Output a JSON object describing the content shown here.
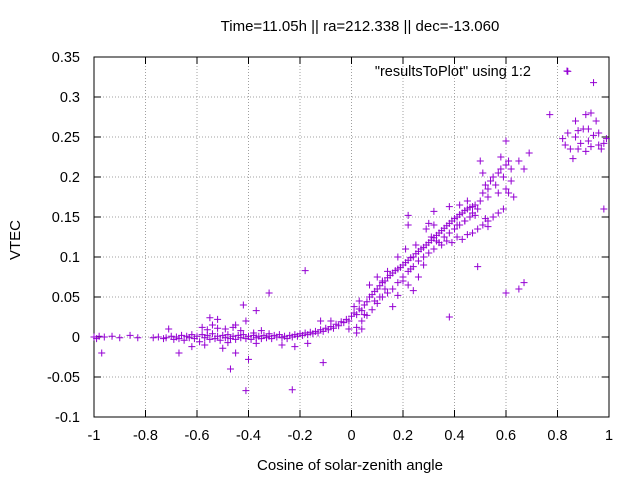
{
  "chart_data": {
    "type": "scatter",
    "title": "Time=11.05h || ra=212.338 || dec=-13.060",
    "xlabel": "Cosine of solar-zenith angle",
    "ylabel": "VTEC",
    "xlim": [
      -1,
      1
    ],
    "ylim": [
      -0.1,
      0.35
    ],
    "xticks": [
      "-1",
      "-0.8",
      "-0.6",
      "-0.4",
      "-0.2",
      "0",
      "0.2",
      "0.4",
      "0.6",
      "0.8",
      "1"
    ],
    "yticks": [
      "-0.1",
      "-0.05",
      "0",
      "0.05",
      "0.1",
      "0.15",
      "0.2",
      "0.25",
      "0.3",
      "0.35"
    ],
    "grid": true,
    "legend_position": "top-right",
    "marker": "+",
    "color": "#9400D3",
    "series": [
      {
        "name": "\"resultsToPlot\" using 1:2",
        "points": [
          [
            -1.0,
            0.0
          ],
          [
            -0.99,
            -0.002
          ],
          [
            -0.98,
            0.001
          ],
          [
            -0.97,
            -0.02
          ],
          [
            -0.96,
            0.0
          ],
          [
            -0.93,
            0.001
          ],
          [
            -0.9,
            -0.001
          ],
          [
            -0.86,
            0.002
          ],
          [
            -0.83,
            -0.001
          ],
          [
            -0.77,
            -0.001
          ],
          [
            -0.75,
            0.0
          ],
          [
            -0.73,
            -0.002
          ],
          [
            -0.72,
            -0.001
          ],
          [
            -0.7,
            0.001
          ],
          [
            -0.69,
            -0.003
          ],
          [
            -0.68,
            0.0
          ],
          [
            -0.67,
            -0.002
          ],
          [
            -0.66,
            0.002
          ],
          [
            -0.65,
            -0.004
          ],
          [
            -0.64,
            0.001
          ],
          [
            -0.63,
            -0.001
          ],
          [
            -0.62,
            0.003
          ],
          [
            -0.61,
            -0.002
          ],
          [
            -0.6,
            0.001
          ],
          [
            -0.59,
            -0.006
          ],
          [
            -0.58,
            0.003
          ],
          [
            -0.57,
            -0.001
          ],
          [
            -0.56,
            0.002
          ],
          [
            -0.55,
            -0.003
          ],
          [
            -0.54,
            0.004
          ],
          [
            -0.53,
            -0.002
          ],
          [
            -0.52,
            0.001
          ],
          [
            -0.51,
            -0.004
          ],
          [
            -0.5,
            0.002
          ],
          [
            -0.49,
            -0.001
          ],
          [
            -0.48,
            0.003
          ],
          [
            -0.47,
            -0.002
          ],
          [
            -0.46,
            0.001
          ],
          [
            -0.45,
            -0.003
          ],
          [
            -0.44,
            0.002
          ],
          [
            -0.43,
            -0.001
          ],
          [
            -0.42,
            0.003
          ],
          [
            -0.41,
            -0.002
          ],
          [
            -0.4,
            0.001
          ],
          [
            -0.39,
            -0.003
          ],
          [
            -0.38,
            0.002
          ],
          [
            -0.37,
            -0.001
          ],
          [
            -0.36,
            0.001
          ],
          [
            -0.35,
            -0.002
          ],
          [
            -0.34,
            0.002
          ],
          [
            -0.33,
            -0.001
          ],
          [
            -0.32,
            0.001
          ],
          [
            -0.31,
            -0.002
          ],
          [
            -0.3,
            0.002
          ],
          [
            -0.29,
            0.0
          ],
          [
            -0.28,
            0.003
          ],
          [
            -0.27,
            -0.001
          ],
          [
            -0.26,
            0.001
          ],
          [
            -0.25,
            -0.002
          ],
          [
            -0.24,
            0.002
          ],
          [
            -0.23,
            0.0
          ],
          [
            -0.22,
            0.003
          ],
          [
            -0.21,
            0.001
          ],
          [
            -0.2,
            0.004
          ],
          [
            -0.19,
            0.002
          ],
          [
            -0.18,
            0.005
          ],
          [
            -0.17,
            0.003
          ],
          [
            -0.16,
            0.006
          ],
          [
            -0.15,
            0.004
          ],
          [
            -0.14,
            0.007
          ],
          [
            -0.13,
            0.005
          ],
          [
            -0.12,
            0.009
          ],
          [
            -0.11,
            0.007
          ],
          [
            -0.1,
            0.011
          ],
          [
            -0.09,
            0.009
          ],
          [
            -0.08,
            0.013
          ],
          [
            -0.07,
            0.011
          ],
          [
            -0.06,
            0.016
          ],
          [
            -0.05,
            0.014
          ],
          [
            -0.04,
            0.019
          ],
          [
            -0.58,
            0.012
          ],
          [
            -0.56,
            0.009
          ],
          [
            -0.54,
            0.015
          ],
          [
            -0.52,
            0.011
          ],
          [
            -0.49,
            0.01
          ],
          [
            -0.46,
            0.012
          ],
          [
            -0.43,
            0.008
          ],
          [
            -0.41,
            0.02
          ],
          [
            -0.38,
            0.005
          ],
          [
            -0.35,
            0.008
          ],
          [
            -0.32,
            0.004
          ],
          [
            -0.55,
            0.024
          ],
          [
            -0.52,
            0.022
          ],
          [
            -0.45,
            0.015
          ],
          [
            -0.42,
            0.04
          ],
          [
            -0.37,
            0.033
          ],
          [
            -0.62,
            -0.012
          ],
          [
            -0.57,
            -0.01
          ],
          [
            -0.5,
            -0.014
          ],
          [
            -0.45,
            -0.02
          ],
          [
            -0.48,
            -0.007
          ],
          [
            -0.37,
            -0.008
          ],
          [
            -0.27,
            -0.01
          ],
          [
            -0.22,
            -0.012
          ],
          [
            -0.17,
            -0.008
          ],
          [
            -0.47,
            -0.04
          ],
          [
            -0.41,
            -0.067
          ],
          [
            -0.4,
            -0.028
          ],
          [
            -0.23,
            -0.066
          ],
          [
            -0.11,
            -0.032
          ],
          [
            -0.67,
            -0.02
          ],
          [
            -0.71,
            0.01
          ],
          [
            -0.32,
            0.055
          ],
          [
            -0.18,
            0.083
          ],
          [
            -0.12,
            0.02
          ],
          [
            -0.08,
            0.02
          ],
          [
            -0.03,
            0.018
          ],
          [
            -0.02,
            0.022
          ],
          [
            -0.01,
            0.02
          ],
          [
            0.0,
            0.026
          ],
          [
            0.01,
            0.03
          ],
          [
            0.02,
            0.028
          ],
          [
            0.03,
            0.035
          ],
          [
            0.04,
            0.033
          ],
          [
            0.05,
            0.04
          ],
          [
            0.06,
            0.044
          ],
          [
            0.07,
            0.05
          ],
          [
            0.08,
            0.053
          ],
          [
            0.09,
            0.057
          ],
          [
            0.1,
            0.06
          ],
          [
            0.11,
            0.064
          ],
          [
            0.12,
            0.068
          ],
          [
            0.13,
            0.07
          ],
          [
            0.14,
            0.074
          ],
          [
            0.15,
            0.077
          ],
          [
            0.16,
            0.08
          ],
          [
            0.17,
            0.083
          ],
          [
            0.18,
            0.085
          ],
          [
            0.19,
            0.087
          ],
          [
            0.2,
            0.09
          ],
          [
            0.21,
            0.093
          ],
          [
            0.22,
            0.096
          ],
          [
            0.23,
            0.099
          ],
          [
            0.24,
            0.1
          ],
          [
            0.25,
            0.104
          ],
          [
            0.26,
            0.107
          ],
          [
            0.27,
            0.11
          ],
          [
            0.28,
            0.112
          ],
          [
            0.29,
            0.115
          ],
          [
            0.3,
            0.118
          ],
          [
            0.31,
            0.121
          ],
          [
            0.32,
            0.124
          ],
          [
            0.33,
            0.127
          ],
          [
            0.34,
            0.13
          ],
          [
            0.35,
            0.133
          ],
          [
            0.36,
            0.136
          ],
          [
            0.37,
            0.139
          ],
          [
            0.38,
            0.142
          ],
          [
            0.39,
            0.145
          ],
          [
            0.4,
            0.148
          ],
          [
            0.41,
            0.15
          ],
          [
            0.42,
            0.153
          ],
          [
            0.43,
            0.155
          ],
          [
            0.44,
            0.158
          ],
          [
            0.45,
            0.16
          ],
          [
            0.46,
            0.162
          ],
          [
            0.47,
            0.163
          ],
          [
            0.48,
            0.165
          ],
          [
            0.02,
            0.012
          ],
          [
            0.04,
            0.02
          ],
          [
            0.06,
            0.027
          ],
          [
            0.08,
            0.034
          ],
          [
            0.1,
            0.042
          ],
          [
            0.12,
            0.05
          ],
          [
            0.14,
            0.055
          ],
          [
            0.16,
            0.06
          ],
          [
            0.18,
            0.068
          ],
          [
            0.2,
            0.075
          ],
          [
            0.22,
            0.082
          ],
          [
            0.24,
            0.088
          ],
          [
            0.26,
            0.095
          ],
          [
            0.28,
            0.1
          ],
          [
            0.3,
            0.105
          ],
          [
            0.32,
            0.11
          ],
          [
            0.34,
            0.118
          ],
          [
            0.36,
            0.125
          ],
          [
            0.38,
            0.13
          ],
          [
            0.4,
            0.135
          ],
          [
            0.42,
            0.14
          ],
          [
            0.44,
            0.145
          ],
          [
            0.46,
            0.15
          ],
          [
            0.48,
            0.152
          ],
          [
            0.35,
            0.115
          ],
          [
            0.37,
            0.12
          ],
          [
            0.39,
            0.118
          ],
          [
            0.41,
            0.125
          ],
          [
            0.43,
            0.122
          ],
          [
            0.45,
            0.128
          ],
          [
            0.47,
            0.13
          ],
          [
            0.49,
            0.135
          ],
          [
            0.51,
            0.14
          ],
          [
            0.53,
            0.145
          ],
          [
            0.55,
            0.15
          ],
          [
            0.57,
            0.155
          ],
          [
            0.59,
            0.16
          ],
          [
            0.5,
            0.17
          ],
          [
            0.51,
            0.18
          ],
          [
            0.52,
            0.19
          ],
          [
            0.53,
            0.185
          ],
          [
            0.54,
            0.195
          ],
          [
            0.55,
            0.2
          ],
          [
            0.56,
            0.19
          ],
          [
            0.57,
            0.205
          ],
          [
            0.58,
            0.21
          ],
          [
            0.59,
            0.2
          ],
          [
            0.6,
            0.215
          ],
          [
            0.61,
            0.22
          ],
          [
            0.62,
            0.21
          ],
          [
            0.51,
            0.205
          ],
          [
            0.53,
            0.175
          ],
          [
            0.57,
            0.18
          ],
          [
            0.6,
            0.185
          ],
          [
            0.62,
            0.195
          ],
          [
            0.5,
            0.22
          ],
          [
            0.58,
            0.225
          ],
          [
            0.6,
            0.245
          ],
          [
            0.65,
            0.22
          ],
          [
            0.67,
            0.21
          ],
          [
            0.69,
            0.23
          ],
          [
            0.61,
            0.18
          ],
          [
            0.45,
            0.17
          ],
          [
            0.47,
            0.155
          ],
          [
            0.49,
            0.16
          ],
          [
            0.44,
            0.145
          ],
          [
            0.42,
            0.165
          ],
          [
            0.38,
            0.163
          ],
          [
            0.34,
            0.13
          ],
          [
            0.31,
            0.125
          ],
          [
            0.29,
            0.135
          ],
          [
            0.23,
            0.085
          ],
          [
            0.21,
            0.11
          ],
          [
            0.25,
            0.115
          ],
          [
            0.11,
            0.05
          ],
          [
            0.13,
            0.06
          ],
          [
            0.09,
            0.045
          ],
          [
            0.07,
            0.065
          ],
          [
            0.05,
            0.028
          ],
          [
            0.03,
            0.045
          ],
          [
            0.01,
            0.038
          ],
          [
            -0.01,
            0.01
          ],
          [
            0.02,
            0.005
          ],
          [
            0.04,
            0.01
          ],
          [
            0.22,
            0.065
          ],
          [
            0.18,
            0.052
          ],
          [
            0.26,
            0.075
          ],
          [
            0.16,
            0.038
          ],
          [
            0.24,
            0.058
          ],
          [
            0.2,
            0.07
          ],
          [
            0.28,
            0.09
          ],
          [
            0.12,
            0.07
          ],
          [
            0.1,
            0.075
          ],
          [
            0.14,
            0.082
          ],
          [
            0.18,
            0.1
          ],
          [
            0.3,
            0.142
          ],
          [
            0.32,
            0.14
          ],
          [
            0.22,
            0.14
          ],
          [
            0.33,
            0.12
          ],
          [
            0.22,
            0.152
          ],
          [
            0.32,
            0.157
          ],
          [
            0.41,
            0.14
          ],
          [
            0.53,
            0.138
          ],
          [
            0.52,
            0.148
          ],
          [
            0.63,
            0.175
          ],
          [
            0.38,
            0.025
          ],
          [
            0.49,
            0.088
          ],
          [
            0.6,
            0.055
          ],
          [
            0.65,
            0.06
          ],
          [
            0.67,
            0.068
          ],
          [
            0.77,
            0.278
          ],
          [
            0.82,
            0.248
          ],
          [
            0.83,
            0.24
          ],
          [
            0.84,
            0.255
          ],
          [
            0.85,
            0.235
          ],
          [
            0.86,
            0.223
          ],
          [
            0.87,
            0.25
          ],
          [
            0.88,
            0.258
          ],
          [
            0.89,
            0.242
          ],
          [
            0.9,
            0.26
          ],
          [
            0.91,
            0.232
          ],
          [
            0.92,
            0.245
          ],
          [
            0.93,
            0.238
          ],
          [
            0.94,
            0.252
          ],
          [
            0.95,
            0.27
          ],
          [
            0.96,
            0.24
          ],
          [
            0.97,
            0.235
          ],
          [
            0.98,
            0.242
          ],
          [
            0.99,
            0.248
          ],
          [
            0.91,
            0.278
          ],
          [
            0.87,
            0.27
          ],
          [
            0.93,
            0.28
          ],
          [
            0.84,
            0.332
          ],
          [
            0.94,
            0.318
          ],
          [
            0.98,
            0.16
          ],
          [
            0.88,
            0.235
          ],
          [
            0.96,
            0.255
          ],
          [
            0.92,
            0.26
          ]
        ]
      }
    ]
  }
}
